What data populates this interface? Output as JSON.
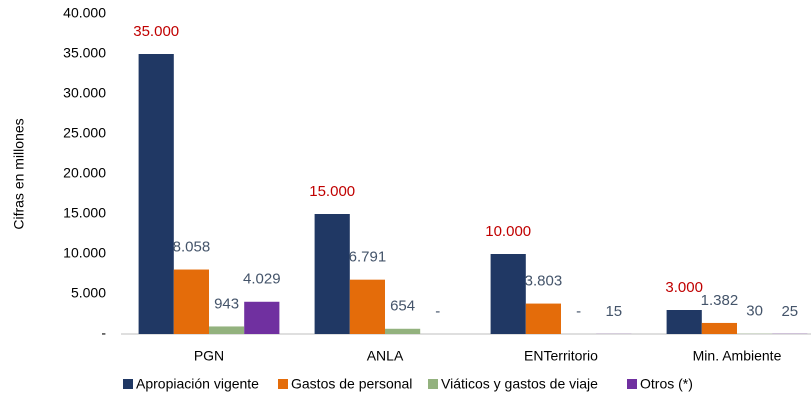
{
  "chart_data": {
    "type": "bar",
    "y_label": "Cifras en millones",
    "categories": [
      "PGN",
      "ANLA",
      "ENTerritorio",
      "Min. Ambiente"
    ],
    "series": [
      {
        "name": "Apropiación vigente",
        "color": "#203864",
        "values": [
          35000,
          15000,
          10000,
          3000
        ],
        "value_labels": [
          "35.000",
          "15.000",
          "10.000",
          "3.000"
        ]
      },
      {
        "name": "Gastos de personal",
        "color": "#e46c0a",
        "values": [
          8058,
          6791,
          3803,
          1382
        ],
        "value_labels": [
          "8.058",
          "6.791",
          "3.803",
          "1.382"
        ]
      },
      {
        "name": "Viáticos y gastos de viaje",
        "color": "#93b27e",
        "values": [
          943,
          654,
          0,
          30
        ],
        "value_labels": [
          "943",
          "654",
          "-",
          "30"
        ]
      },
      {
        "name": "Otros (*)",
        "color": "#7030a0",
        "values": [
          4029,
          0,
          15,
          25
        ],
        "value_labels": [
          "4.029",
          "-",
          "15",
          "25"
        ]
      }
    ],
    "ylim": [
      0,
      40000
    ],
    "yticks": [
      {
        "value": 0,
        "label": "-"
      },
      {
        "value": 5000,
        "label": "5.000"
      },
      {
        "value": 10000,
        "label": "10.000"
      },
      {
        "value": 15000,
        "label": "15.000"
      },
      {
        "value": 20000,
        "label": "20.000"
      },
      {
        "value": 25000,
        "label": "25.000"
      },
      {
        "value": 30000,
        "label": "30.000"
      },
      {
        "value": 35000,
        "label": "35.000"
      },
      {
        "value": 40000,
        "label": "40.000"
      }
    ],
    "grid": false
  }
}
